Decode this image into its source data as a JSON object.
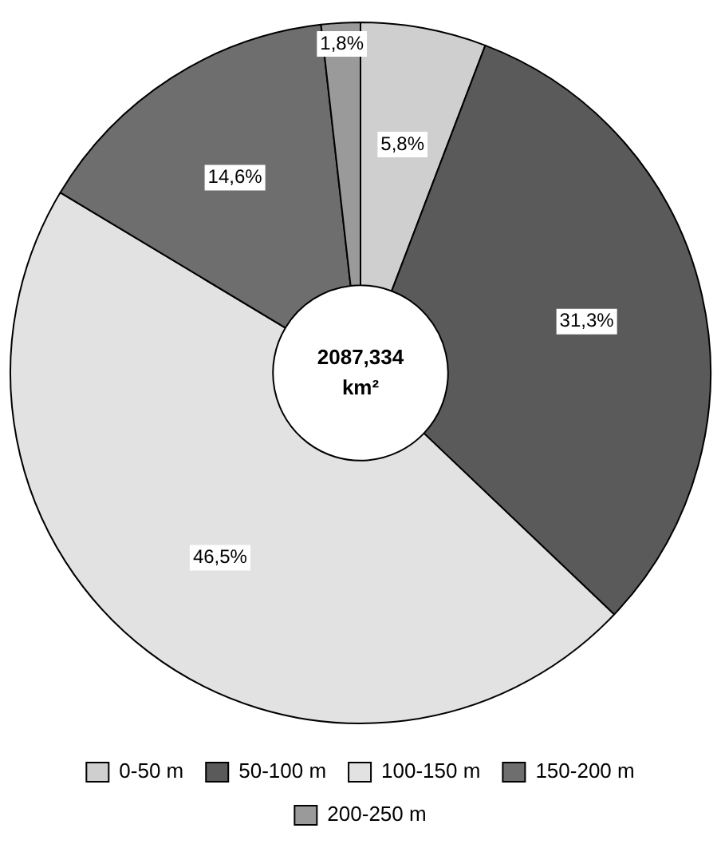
{
  "chart_data": {
    "type": "donut",
    "categories": [
      "0-50 m",
      "50-100 m",
      "100-150 m",
      "150-200 m",
      "200-250 m"
    ],
    "values": [
      5.8,
      31.3,
      46.5,
      14.6,
      1.8
    ],
    "value_labels": [
      "5,8%",
      "31,3%",
      "46,5%",
      "14,6%",
      "1,8%"
    ],
    "colors": [
      "#cfcfcf",
      "#5a5a5a",
      "#e2e2e2",
      "#6e6e6e",
      "#9a9a9a"
    ],
    "annotations": [
      "2087,334 km²"
    ],
    "legend": "bottom"
  }
}
